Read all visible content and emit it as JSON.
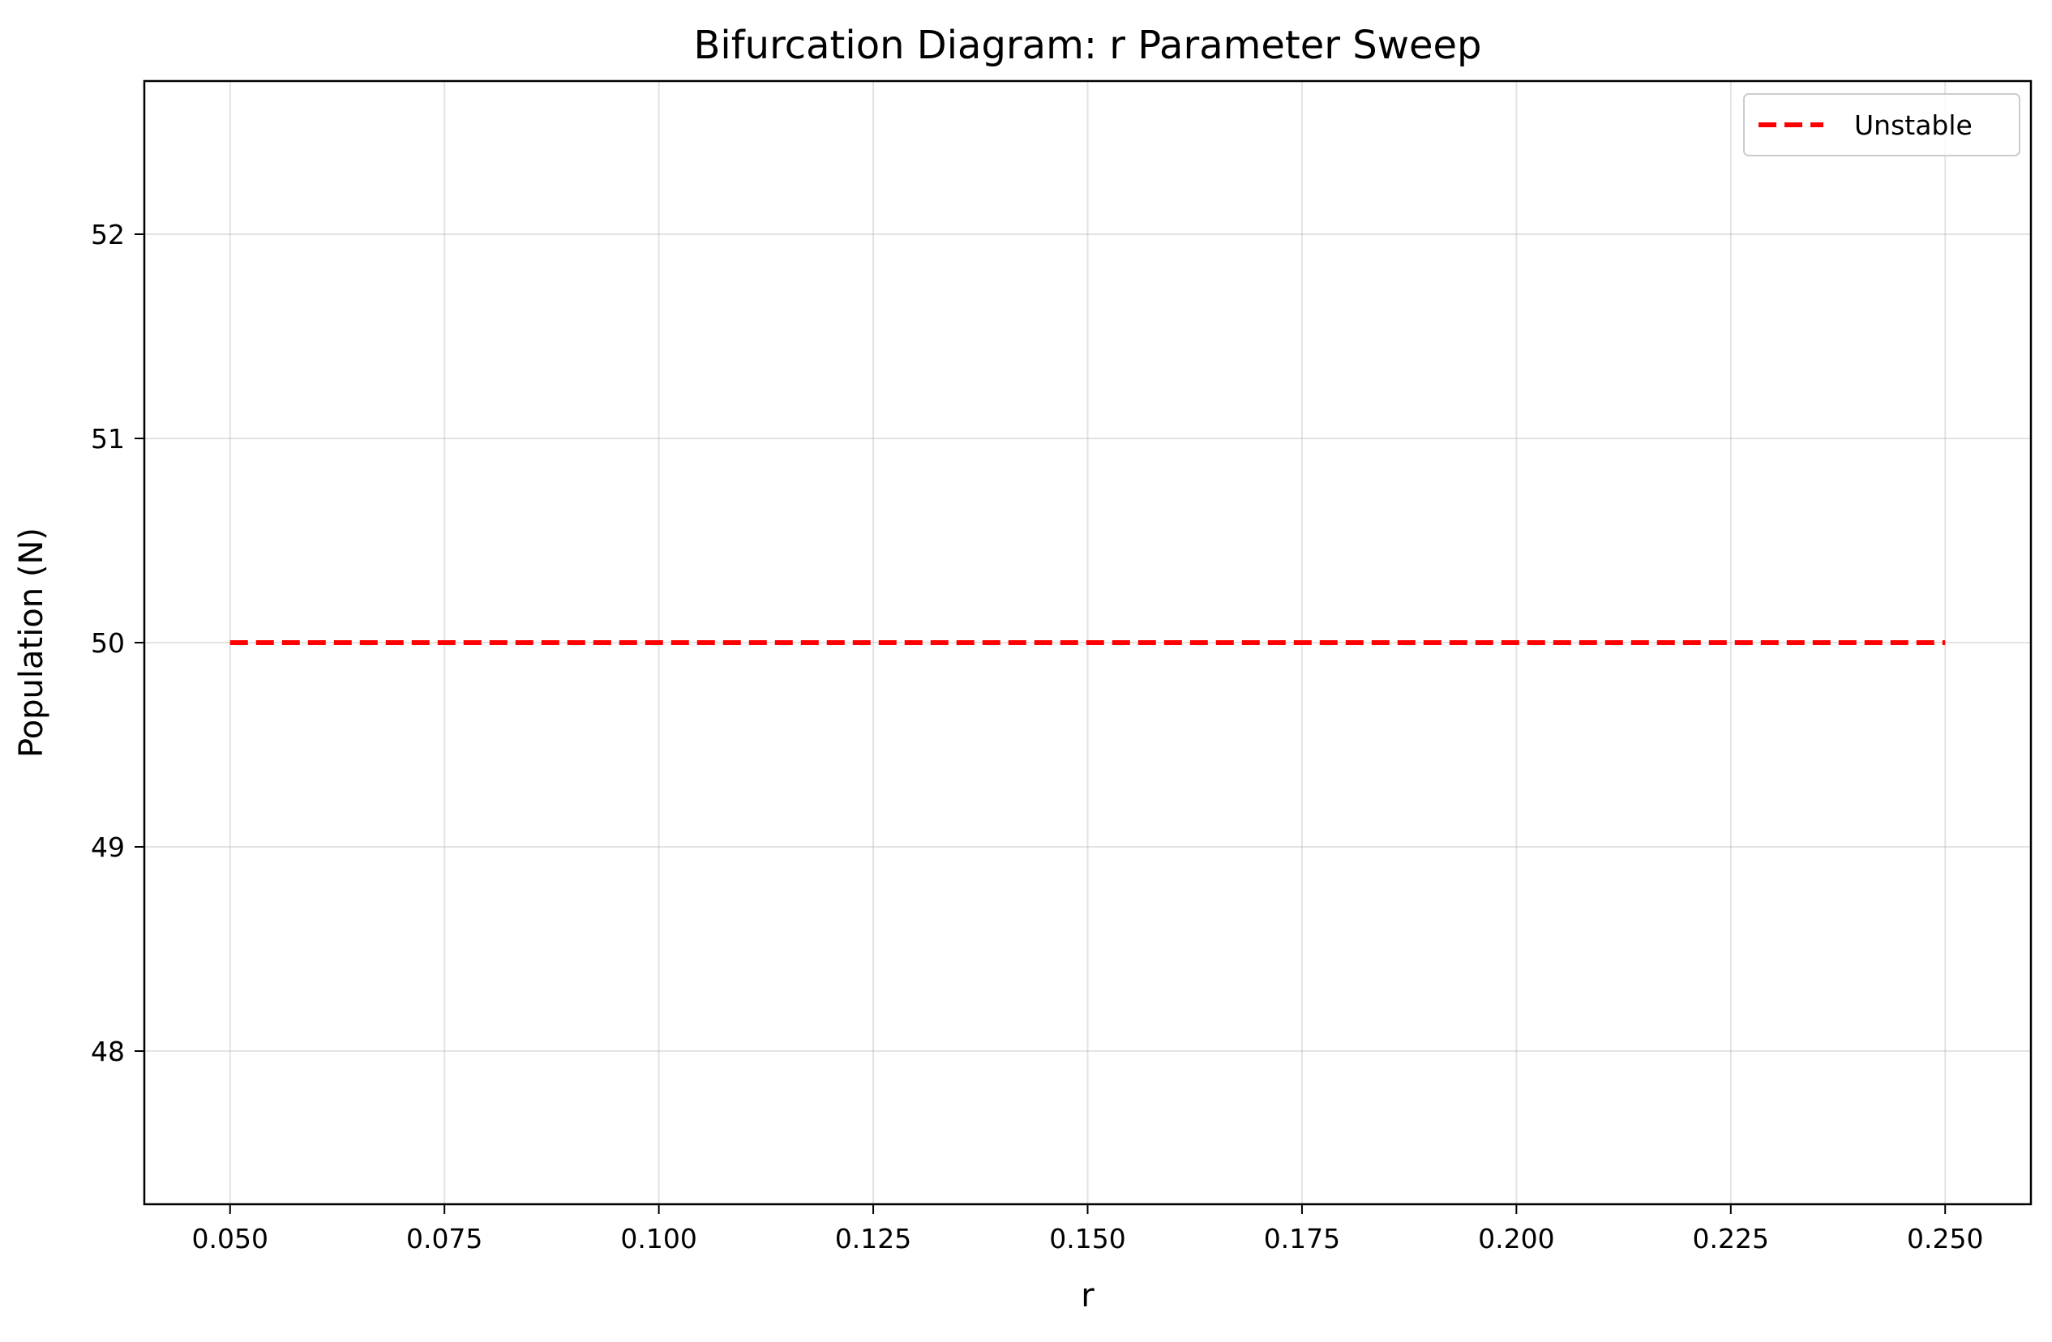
{
  "chart_data": {
    "type": "line",
    "title": "Bifurcation Diagram: r Parameter Sweep",
    "xlabel": "r",
    "ylabel": "Population (N)",
    "xlim": [
      0.04,
      0.26
    ],
    "ylim": [
      47.25,
      52.75
    ],
    "xticks": [
      0.05,
      0.075,
      0.1,
      0.125,
      0.15,
      0.175,
      0.2,
      0.225,
      0.25
    ],
    "xtick_labels": [
      "0.050",
      "0.075",
      "0.100",
      "0.125",
      "0.150",
      "0.175",
      "0.200",
      "0.225",
      "0.250"
    ],
    "yticks": [
      48,
      49,
      50,
      51,
      52
    ],
    "ytick_labels": [
      "48",
      "49",
      "50",
      "51",
      "52"
    ],
    "grid": true,
    "legend_position": "top-right",
    "series": [
      {
        "name": "Unstable",
        "color": "#ff0000",
        "style": "dashed",
        "x": [
          0.05,
          0.25
        ],
        "y": [
          50,
          50
        ]
      }
    ]
  }
}
